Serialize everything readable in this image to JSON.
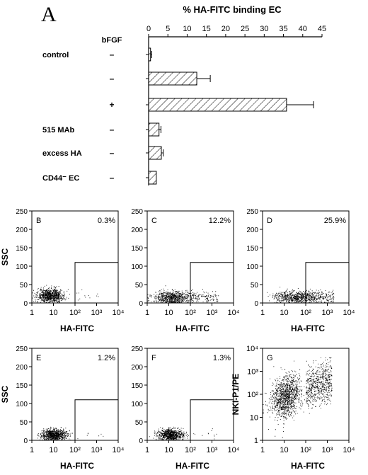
{
  "figure": {
    "panel_a_letter": "A",
    "chart_title": "% HA-FITC binding EC",
    "bfgf_header": "bFGF"
  },
  "chart_data": [
    {
      "type": "bar",
      "orientation": "horizontal",
      "title": "% HA-FITC binding EC",
      "categories": [
        "control",
        "",
        "",
        "515 MAb",
        "excess HA",
        "CD44⁻ EC"
      ],
      "bfgf": [
        "–",
        "–",
        "+",
        "–",
        "–",
        "–"
      ],
      "values": [
        0.5,
        12.5,
        35.8,
        2.7,
        3.3,
        2.0
      ],
      "error": [
        0.3,
        3.5,
        7.0,
        0.5,
        0.5,
        0
      ],
      "xlim": [
        0,
        45
      ],
      "xticks": [
        0,
        5,
        10,
        15,
        20,
        25,
        30,
        35,
        40,
        45
      ],
      "hatch": "diagonal"
    },
    {
      "type": "scatter",
      "panel": "B",
      "percent_label": "0.3%",
      "xlabel": "HA-FITC",
      "ylabel": "SSC",
      "x_scale": "log",
      "xlim": [
        1,
        10000
      ],
      "ylim": [
        0,
        250
      ],
      "yticks": [
        0,
        50,
        100,
        150,
        200,
        250
      ],
      "gate": {
        "x_min": 100,
        "y_max": 110
      },
      "distribution": {
        "x_center": 7,
        "x_spread_log": 0.3,
        "y_center": 20,
        "y_spread": 9,
        "tail": 0.01
      }
    },
    {
      "type": "scatter",
      "panel": "C",
      "percent_label": "12.2%",
      "xlabel": "HA-FITC",
      "ylabel": "",
      "x_scale": "log",
      "xlim": [
        1,
        10000
      ],
      "ylim": [
        0,
        250
      ],
      "yticks": [
        0,
        50,
        100,
        150,
        200,
        250
      ],
      "gate": {
        "x_min": 100,
        "y_max": 110
      },
      "distribution": {
        "x_center": 15,
        "x_spread_log": 0.45,
        "y_center": 15,
        "y_spread": 9,
        "tail": 0.12
      }
    },
    {
      "type": "scatter",
      "panel": "D",
      "percent_label": "25.9%",
      "xlabel": "HA-FITC",
      "ylabel": "",
      "x_scale": "log",
      "xlim": [
        1,
        10000
      ],
      "ylim": [
        0,
        250
      ],
      "yticks": [
        0,
        50,
        100,
        150,
        200,
        250
      ],
      "gate": {
        "x_min": 100,
        "y_max": 110
      },
      "distribution": {
        "x_center": 30,
        "x_spread_log": 0.5,
        "y_center": 15,
        "y_spread": 9,
        "tail": 0.26
      }
    },
    {
      "type": "scatter",
      "panel": "E",
      "percent_label": "1.2%",
      "xlabel": "HA-FITC",
      "ylabel": "SSC",
      "x_scale": "log",
      "xlim": [
        1,
        10000
      ],
      "ylim": [
        0,
        250
      ],
      "yticks": [
        0,
        50,
        100,
        150,
        200,
        250
      ],
      "gate": {
        "x_min": 100,
        "y_max": 110
      },
      "distribution": {
        "x_center": 10,
        "x_spread_log": 0.3,
        "y_center": 15,
        "y_spread": 8,
        "tail": 0.012
      }
    },
    {
      "type": "scatter",
      "panel": "F",
      "percent_label": "1.3%",
      "xlabel": "HA-FITC",
      "ylabel": "",
      "x_scale": "log",
      "xlim": [
        1,
        10000
      ],
      "ylim": [
        0,
        250
      ],
      "yticks": [
        0,
        50,
        100,
        150,
        200,
        250
      ],
      "gate": {
        "x_min": 100,
        "y_max": 110
      },
      "distribution": {
        "x_center": 12,
        "x_spread_log": 0.3,
        "y_center": 15,
        "y_spread": 8,
        "tail": 0.013
      }
    },
    {
      "type": "scatter",
      "panel": "G",
      "percent_label": "",
      "xlabel": "HA-FITC",
      "ylabel": "NKI-P1/PE",
      "x_scale": "log",
      "y_scale": "log",
      "xlim": [
        1,
        10000
      ],
      "ylim": [
        1,
        10000
      ],
      "gate": null,
      "distribution": {
        "x_center": 12,
        "x_spread_log": 0.35,
        "y_center": 80,
        "y_spread_log": 0.45,
        "tail": 0.35
      }
    }
  ]
}
